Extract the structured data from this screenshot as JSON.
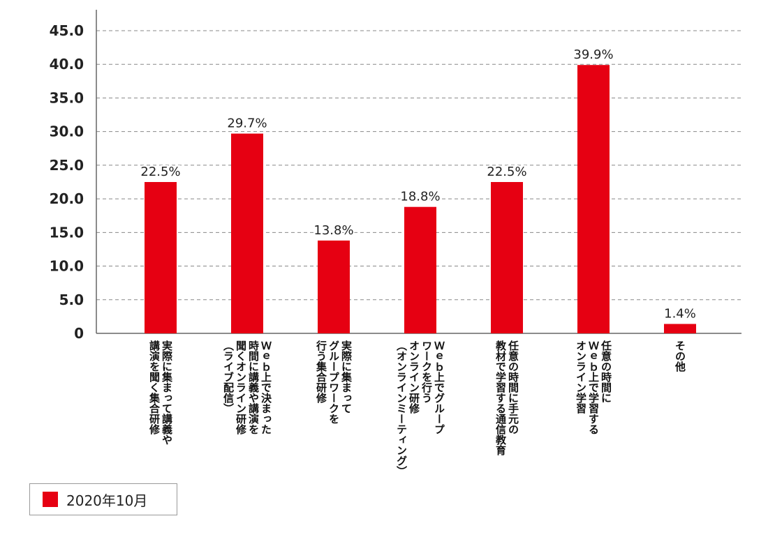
{
  "chart_data": {
    "type": "bar",
    "categories": [
      "実際に集まって講義や\n講演を聞く集合研修",
      "Ｗｅｂ上で決まった\n時間に講義や講演を\n聞くオンライン研修\n（ライブ配信）",
      "実際に集まって\nグループワークを\n行う集合研修",
      "Ｗｅｂ上でグループ\nワークを行う\nオンライン研修\n（オンラインミーティング）",
      "任意の時間に手元の\n教材で学習する通信教育",
      "任意の時間に\nＷｅｂ上で学習する\nオンライン学習",
      "その他"
    ],
    "series": [
      {
        "name": "2020年10月",
        "values": [
          22.5,
          29.7,
          13.8,
          18.8,
          22.5,
          39.9,
          1.4
        ],
        "color": "#e60012"
      }
    ],
    "data_labels": [
      "22.5%",
      "29.7%",
      "13.8%",
      "18.8%",
      "22.5%",
      "39.9%",
      "1.4%"
    ],
    "y_ticks": [
      "0",
      "5.0",
      "10.0",
      "15.0",
      "20.0",
      "25.0",
      "30.0",
      "35.0",
      "40.0",
      "45.0"
    ],
    "ylim": [
      0,
      45
    ],
    "grid": "horizontal dashed",
    "legend_position": "bottom-left",
    "title": "",
    "xlabel": "",
    "ylabel": ""
  }
}
